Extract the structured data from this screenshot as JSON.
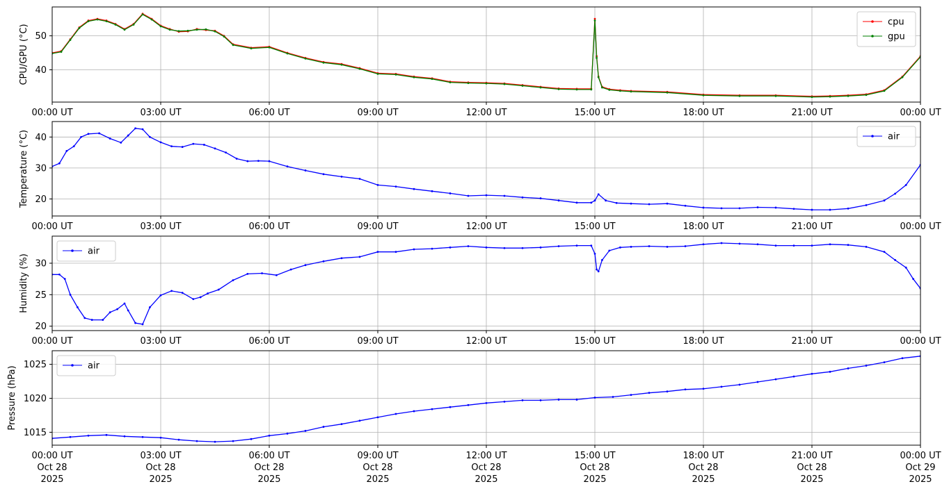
{
  "chart_data": [
    {
      "type": "line",
      "ylabel": "CPU/GPU (°C)",
      "ylim": [
        30.5,
        58.5
      ],
      "yticks": [
        40,
        50
      ],
      "grid": true,
      "legend_position": "top-right",
      "series": [
        {
          "name": "cpu",
          "color": "#ff0000",
          "x": [
            0,
            0.25,
            0.5,
            0.75,
            1.0,
            1.25,
            1.5,
            1.75,
            2.0,
            2.25,
            2.5,
            2.75,
            3.0,
            3.25,
            3.5,
            3.75,
            4.0,
            4.25,
            4.5,
            4.75,
            5.0,
            5.5,
            6.0,
            6.5,
            7.0,
            7.5,
            8.0,
            8.5,
            9.0,
            9.5,
            10.0,
            10.5,
            11.0,
            11.5,
            12.0,
            12.5,
            13.0,
            13.5,
            14.0,
            14.5,
            14.9,
            15.0,
            15.05,
            15.1,
            15.2,
            15.4,
            15.7,
            16.0,
            17.0,
            18.0,
            19.0,
            20.0,
            21.0,
            21.5,
            22.0,
            22.5,
            23.0,
            23.5,
            24.0
          ],
          "y": [
            45,
            45.5,
            49,
            52.5,
            54.5,
            55,
            54.5,
            53.5,
            52,
            53.5,
            56.5,
            55,
            53,
            52,
            51.2,
            51.3,
            52,
            51.7,
            51.5,
            50,
            47.5,
            46.5,
            46.8,
            45,
            43.5,
            42.3,
            41.7,
            40.5,
            39,
            38.8,
            38,
            37.5,
            36.5,
            36.3,
            36.2,
            36,
            35.5,
            35,
            34.5,
            34.4,
            34.4,
            55,
            44,
            38,
            35,
            34.3,
            34,
            33.8,
            33.5,
            32.7,
            32.5,
            32.5,
            32.2,
            32.3,
            32.5,
            32.8,
            34,
            38,
            44
          ]
        },
        {
          "name": "gpu",
          "color": "#008000",
          "x": [
            0,
            0.25,
            0.5,
            0.75,
            1.0,
            1.25,
            1.5,
            1.75,
            2.0,
            2.25,
            2.5,
            2.75,
            3.0,
            3.25,
            3.5,
            3.75,
            4.0,
            4.25,
            4.5,
            4.75,
            5.0,
            5.5,
            6.0,
            6.5,
            7.0,
            7.5,
            8.0,
            8.5,
            9.0,
            9.5,
            10.0,
            10.5,
            11.0,
            11.5,
            12.0,
            12.5,
            13.0,
            13.5,
            14.0,
            14.5,
            14.9,
            15.0,
            15.05,
            15.1,
            15.2,
            15.4,
            15.7,
            16.0,
            17.0,
            18.0,
            19.0,
            20.0,
            21.0,
            21.5,
            22.0,
            22.5,
            23.0,
            23.5,
            24.0
          ],
          "y": [
            44.8,
            45.3,
            48.8,
            52.3,
            54.3,
            54.8,
            54.3,
            53.3,
            51.8,
            53.3,
            56.3,
            54.8,
            52.8,
            51.8,
            51.4,
            51.5,
            51.8,
            51.9,
            51.3,
            49.8,
            47.3,
            46.3,
            46.6,
            44.8,
            43.3,
            42.1,
            41.5,
            40.3,
            38.8,
            38.6,
            37.8,
            37.3,
            36.3,
            36.1,
            36.0,
            35.8,
            35.3,
            34.8,
            34.3,
            34.2,
            34.2,
            54.5,
            43.5,
            37.8,
            34.8,
            34.1,
            33.8,
            33.6,
            33.3,
            32.5,
            32.3,
            32.3,
            32.0,
            32.1,
            32.3,
            32.6,
            33.8,
            37.8,
            43.8
          ]
        }
      ]
    },
    {
      "type": "line",
      "ylabel": "Temperature (°C)",
      "ylim": [
        14.5,
        45
      ],
      "yticks": [
        20,
        30,
        40
      ],
      "grid": true,
      "legend_position": "top-right",
      "series": [
        {
          "name": "air",
          "color": "#0000ff",
          "x": [
            0,
            0.2,
            0.4,
            0.6,
            0.8,
            1.0,
            1.3,
            1.6,
            1.9,
            2.1,
            2.3,
            2.5,
            2.7,
            3.0,
            3.3,
            3.6,
            3.9,
            4.2,
            4.5,
            4.8,
            5.1,
            5.4,
            5.7,
            6.0,
            6.5,
            7.0,
            7.5,
            8.0,
            8.5,
            9.0,
            9.5,
            10.0,
            10.5,
            11.0,
            11.5,
            12.0,
            12.5,
            13.0,
            13.5,
            14.0,
            14.5,
            14.9,
            15.0,
            15.1,
            15.3,
            15.6,
            16.0,
            16.5,
            17.0,
            17.5,
            18.0,
            18.5,
            19.0,
            19.5,
            20.0,
            20.5,
            21.0,
            21.5,
            22.0,
            22.5,
            23.0,
            23.3,
            23.6,
            24.0
          ],
          "y": [
            30.5,
            31.5,
            35.5,
            37,
            40,
            41,
            41.2,
            39.5,
            38.2,
            40.5,
            42.8,
            42.5,
            40,
            38.3,
            37,
            36.8,
            37.8,
            37.5,
            36.3,
            35,
            33,
            32.2,
            32.3,
            32.2,
            30.5,
            29.2,
            28,
            27.2,
            26.5,
            24.5,
            24,
            23.2,
            22.5,
            21.8,
            21,
            21.2,
            21,
            20.5,
            20.2,
            19.5,
            18.8,
            18.8,
            19.5,
            21.5,
            19.5,
            18.7,
            18.5,
            18.3,
            18.5,
            17.8,
            17.2,
            17.0,
            17.0,
            17.3,
            17.2,
            16.8,
            16.5,
            16.5,
            16.9,
            18.0,
            19.5,
            21.7,
            24.5,
            31
          ]
        }
      ]
    },
    {
      "type": "line",
      "ylabel": "Humidity (%)",
      "ylim": [
        19.3,
        34.3
      ],
      "yticks": [
        20,
        25,
        30
      ],
      "grid": true,
      "legend_position": "top-left",
      "series": [
        {
          "name": "air",
          "color": "#0000ff",
          "x": [
            0,
            0.2,
            0.35,
            0.5,
            0.7,
            0.9,
            1.1,
            1.4,
            1.6,
            1.8,
            2.0,
            2.1,
            2.3,
            2.5,
            2.7,
            3.0,
            3.3,
            3.6,
            3.9,
            4.1,
            4.3,
            4.6,
            5.0,
            5.4,
            5.8,
            6.2,
            6.6,
            7.0,
            7.5,
            8.0,
            8.5,
            9.0,
            9.5,
            10.0,
            10.5,
            11.0,
            11.5,
            12.0,
            12.5,
            13.0,
            13.5,
            14.0,
            14.5,
            14.9,
            15.0,
            15.05,
            15.1,
            15.2,
            15.4,
            15.7,
            16.0,
            16.5,
            17.0,
            17.5,
            18.0,
            18.5,
            19.0,
            19.5,
            20.0,
            20.5,
            21.0,
            21.5,
            22.0,
            22.5,
            23.0,
            23.3,
            23.6,
            23.8,
            24.0
          ],
          "y": [
            28.2,
            28.2,
            27.5,
            25,
            23,
            21.3,
            21,
            21,
            22.2,
            22.7,
            23.6,
            22.5,
            20.5,
            20.3,
            23,
            24.9,
            25.6,
            25.3,
            24.3,
            24.6,
            25.2,
            25.8,
            27.3,
            28.3,
            28.4,
            28.1,
            29,
            29.7,
            30.3,
            30.8,
            31,
            31.8,
            31.8,
            32.2,
            32.3,
            32.5,
            32.7,
            32.5,
            32.4,
            32.4,
            32.5,
            32.7,
            32.8,
            32.8,
            31.5,
            29,
            28.7,
            30.5,
            32,
            32.5,
            32.6,
            32.7,
            32.6,
            32.7,
            33,
            33.2,
            33.1,
            33.0,
            32.8,
            32.8,
            32.8,
            33.0,
            32.9,
            32.6,
            31.8,
            30.5,
            29.3,
            27.5,
            26
          ]
        }
      ]
    },
    {
      "type": "line",
      "ylabel": "Pressure (hPa)",
      "ylim": [
        1013.1,
        1027
      ],
      "yticks": [
        1015,
        1020,
        1025
      ],
      "grid": true,
      "legend_position": "top-left",
      "series": [
        {
          "name": "air",
          "color": "#0000ff",
          "x": [
            0,
            0.5,
            1.0,
            1.5,
            2.0,
            2.5,
            3.0,
            3.5,
            4.0,
            4.5,
            5.0,
            5.5,
            6.0,
            6.5,
            7.0,
            7.5,
            8.0,
            8.5,
            9.0,
            9.5,
            10.0,
            10.5,
            11.0,
            11.5,
            12.0,
            12.5,
            13.0,
            13.5,
            14.0,
            14.5,
            15.0,
            15.5,
            16.0,
            16.5,
            17.0,
            17.5,
            18.0,
            18.5,
            19.0,
            19.5,
            20.0,
            20.5,
            21.0,
            21.5,
            22.0,
            22.5,
            23.0,
            23.5,
            24.0
          ],
          "y": [
            1014.1,
            1014.3,
            1014.5,
            1014.6,
            1014.4,
            1014.3,
            1014.2,
            1013.9,
            1013.7,
            1013.6,
            1013.7,
            1014.0,
            1014.5,
            1014.8,
            1015.2,
            1015.8,
            1016.2,
            1016.7,
            1017.2,
            1017.7,
            1018.1,
            1018.4,
            1018.7,
            1019.0,
            1019.3,
            1019.5,
            1019.7,
            1019.7,
            1019.8,
            1019.8,
            1020.1,
            1020.2,
            1020.5,
            1020.8,
            1021.0,
            1021.3,
            1021.4,
            1021.7,
            1022.0,
            1022.4,
            1022.8,
            1023.2,
            1023.6,
            1023.9,
            1024.4,
            1024.8,
            1025.3,
            1025.9,
            1026.2
          ]
        }
      ]
    }
  ],
  "x_axis": {
    "range_hours": [
      0,
      24
    ],
    "tick_hours": [
      0,
      3,
      6,
      9,
      12,
      15,
      18,
      21,
      24
    ],
    "time_labels": [
      "00:00 UT",
      "03:00 UT",
      "06:00 UT",
      "09:00 UT",
      "12:00 UT",
      "15:00 UT",
      "18:00 UT",
      "21:00 UT",
      "00:00 UT"
    ],
    "date_labels": [
      "Oct 28",
      "Oct 28",
      "Oct 28",
      "Oct 28",
      "Oct 28",
      "Oct 28",
      "Oct 28",
      "Oct 28",
      "Oct 29"
    ],
    "year_labels": [
      "2025",
      "2025",
      "2025",
      "2025",
      "2025",
      "2025",
      "2025",
      "2025",
      "2025"
    ]
  }
}
